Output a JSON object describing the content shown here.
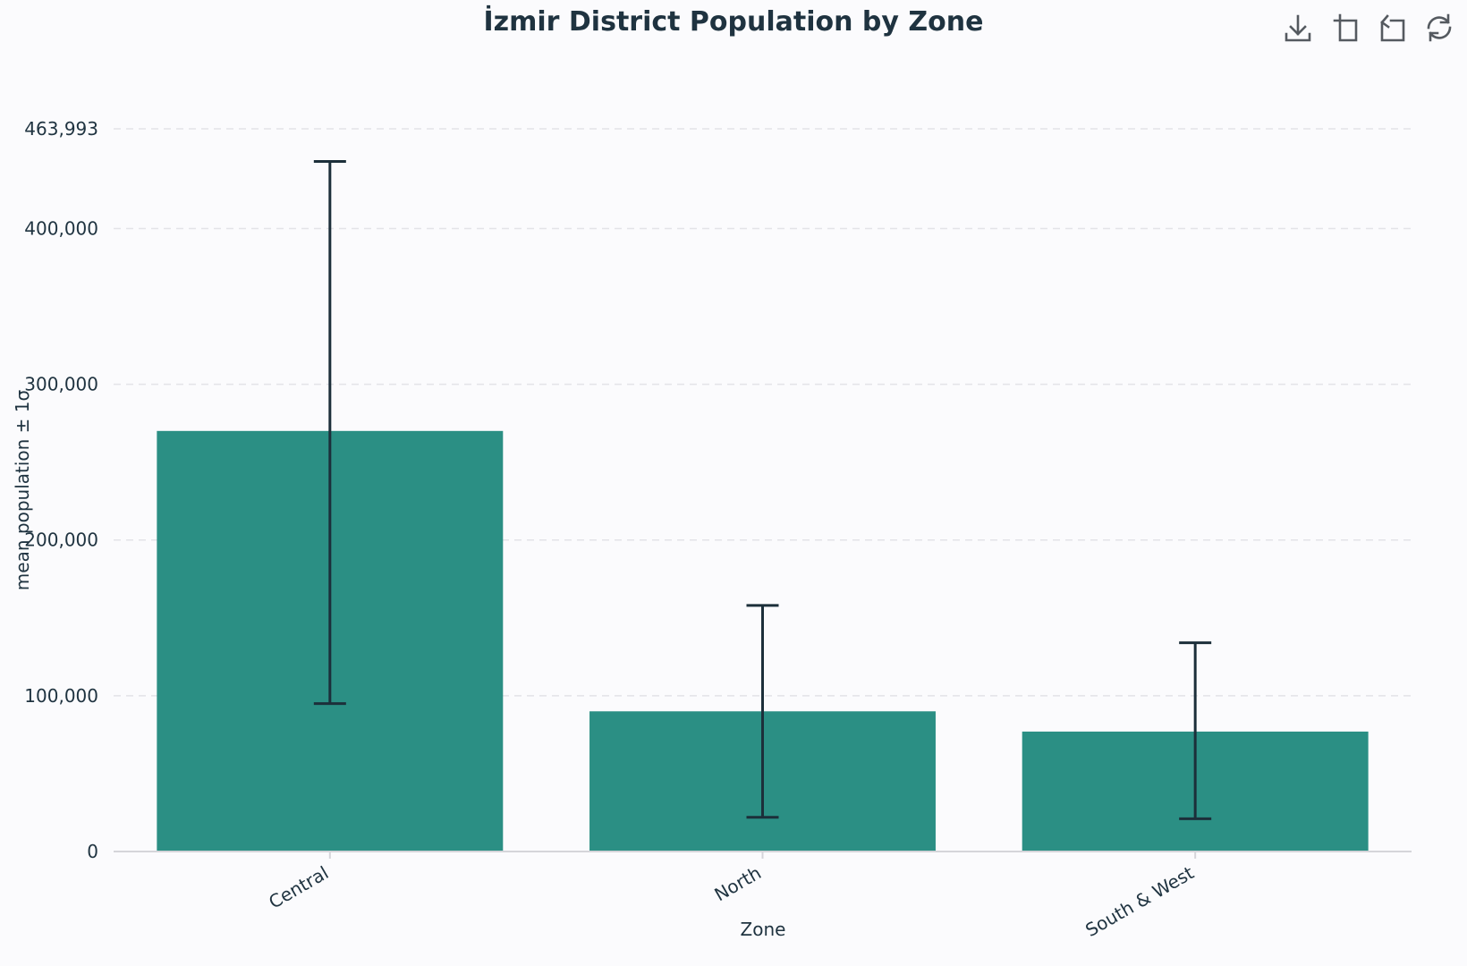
{
  "toolbar": {
    "icons": [
      "download-icon",
      "crop-icon",
      "undo-icon",
      "refresh-icon"
    ]
  },
  "chart_data": {
    "type": "bar",
    "title": "İzmir District Population by Zone",
    "xlabel": "Zone",
    "ylabel": "mean population ± 1σ",
    "categories": [
      "Central",
      "North",
      "South & West"
    ],
    "series": [
      {
        "values": [
          270000,
          90000,
          77000
        ],
        "error_low": [
          95000,
          22000,
          21000
        ],
        "error_high": [
          443000,
          158000,
          134000
        ]
      }
    ],
    "ylim": [
      0,
      463993
    ],
    "yticks": [
      0,
      100000,
      200000,
      300000,
      400000,
      463993
    ],
    "ytick_labels": [
      "0",
      "100,000",
      "200,000",
      "300,000",
      "400,000",
      "463,993"
    ],
    "grid": true,
    "legend": "none",
    "colors": {
      "bar": "#2b8f84",
      "error_bar": "#1c2f3a",
      "text": "#1f3340"
    }
  }
}
